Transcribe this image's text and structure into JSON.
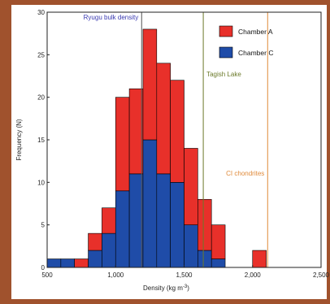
{
  "chart_data": {
    "type": "bar",
    "stacked": true,
    "x": [
      500,
      600,
      700,
      800,
      900,
      1000,
      1100,
      1200,
      1300,
      1400,
      1500,
      1600,
      1700,
      1800,
      1900,
      2000
    ],
    "bin_width": 100,
    "series": [
      {
        "name": "Chamber A",
        "color": "#e8302a",
        "values": [
          0,
          0,
          1,
          2,
          3,
          11,
          10,
          13,
          13,
          12,
          9,
          6,
          4,
          0,
          0,
          2
        ]
      },
      {
        "name": "Chamber C",
        "color": "#1f4ca8",
        "values": [
          1,
          1,
          0,
          2,
          4,
          9,
          11,
          15,
          11,
          10,
          5,
          2,
          1,
          0,
          0,
          0
        ]
      }
    ],
    "xlabel": "Density (kg m",
    "xlabel_sup": "-3",
    "xlabel_close": ")",
    "ylabel": "Frequency (N)",
    "xlim": [
      500,
      2500
    ],
    "ylim": [
      0,
      30
    ],
    "xticks": [
      500,
      1000,
      1500,
      2000,
      2500
    ],
    "xtick_labels": [
      "500",
      "1,000",
      "1,500",
      "2,000",
      "2,500"
    ],
    "yticks": [
      0,
      5,
      10,
      15,
      20,
      25,
      30
    ],
    "legend_position": "top-right",
    "reference_lines": [
      {
        "label": "Ryugu bulk density",
        "x": 1190,
        "color": "#555555",
        "text_color": "#3a3ab0"
      },
      {
        "label": "Tagish Lake",
        "x": 1640,
        "color": "#6b7a2a",
        "text_color": "#6b7a2a"
      },
      {
        "label": "CI chondrites",
        "x": 2110,
        "color": "#e08a3a",
        "text_color": "#e08a3a"
      }
    ]
  }
}
